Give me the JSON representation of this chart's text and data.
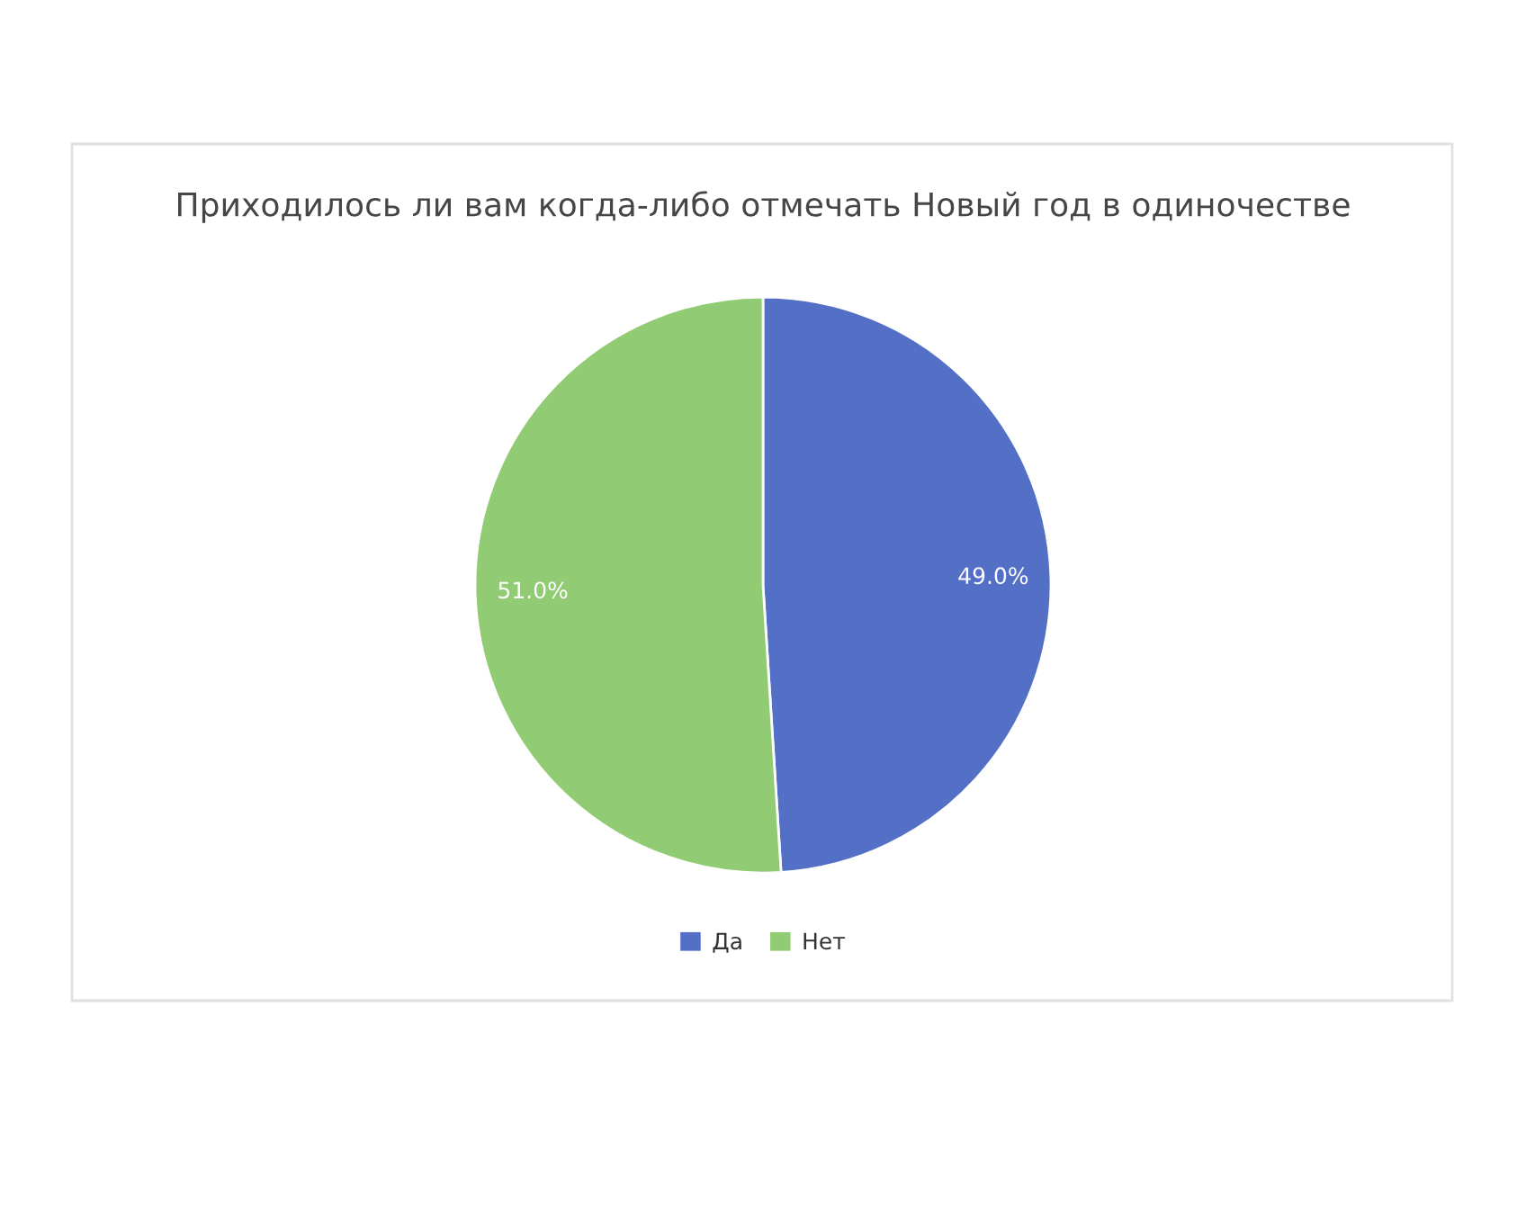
{
  "chart_data": {
    "type": "pie",
    "title": "Приходилось ли вам когда-либо отмечать Новый год в одиночестве",
    "categories": [
      "Да",
      "Нет"
    ],
    "values": [
      49.0,
      51.0
    ],
    "colors": [
      "#5470c6",
      "#91cc75"
    ],
    "value_labels": [
      "49.0%",
      "51.0%"
    ],
    "legend": "bottom"
  }
}
